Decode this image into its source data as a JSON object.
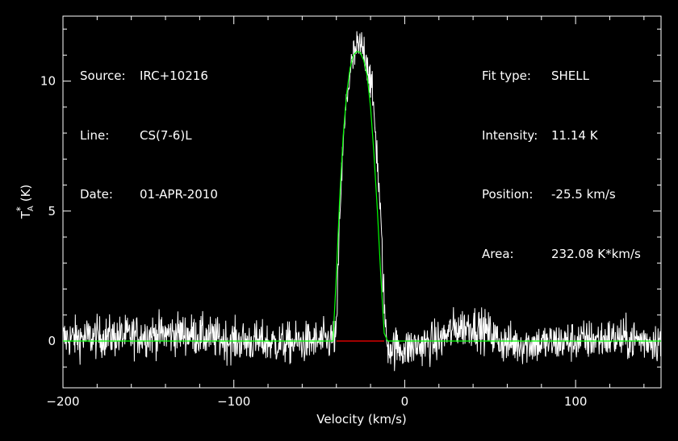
{
  "info_left": {
    "source_key": "Source:",
    "source_value": "IRC+10216",
    "line_key": "Line:",
    "line_value": "CS(7-6)L",
    "date_key": "Date:",
    "date_value": "01-APR-2010"
  },
  "info_right": {
    "fit_type_key": "Fit type:",
    "fit_type_value": "SHELL",
    "intensity_key": "Intensity:",
    "intensity_value": "11.14 K",
    "position_key": "Position:",
    "position_value": "-25.5 km/s",
    "area_key": "Area:",
    "area_value": "232.08 K*km/s"
  },
  "chart_data": {
    "type": "line",
    "title": "",
    "xlabel": "Velocity (km/s)",
    "ylabel_main": "T",
    "ylabel_sub": "A",
    "ylabel_sup": "*",
    "ylabel_unit": "(K)",
    "xlim": [
      -200,
      150
    ],
    "ylim": [
      -1.8,
      12.5
    ],
    "x_ticks": [
      -200,
      -100,
      0,
      100
    ],
    "x_tick_labels": [
      "-200",
      "-100",
      "0",
      "100"
    ],
    "y_ticks": [
      0,
      5,
      10
    ],
    "y_tick_labels": [
      "0",
      "5",
      "10"
    ],
    "grid": false,
    "legend": "none",
    "colors": {
      "background": "#000000",
      "spectrum": "#ffffff",
      "fit": "#00ff00",
      "baseline": "#ff0000",
      "axes": "#ffffff"
    },
    "series": [
      {
        "role": "spectrum",
        "noise_rms": 0.4,
        "x": [
          -200,
          -160,
          -130,
          -100,
          -70,
          -45,
          -40,
          -39,
          -38,
          -36,
          -34,
          -32,
          -30,
          -28,
          -26,
          -24,
          -22,
          -20,
          -18,
          -16,
          -14,
          -12,
          -11,
          -10,
          0,
          20,
          30,
          40,
          50,
          55,
          60,
          80,
          100,
          120,
          150
        ],
        "y": [
          0.1,
          0.2,
          0.3,
          0.0,
          -0.1,
          0.0,
          0.2,
          2.5,
          5.0,
          7.5,
          9.3,
          10.3,
          10.9,
          11.2,
          11.3,
          11.2,
          10.8,
          10.0,
          8.8,
          7.0,
          4.5,
          1.5,
          0.2,
          -0.2,
          -0.3,
          0.0,
          0.5,
          0.6,
          0.3,
          0.0,
          -0.1,
          -0.1,
          0.0,
          0.1,
          0.0
        ]
      },
      {
        "role": "fit",
        "x": [
          -200,
          -42,
          -40,
          -38,
          -36,
          -34,
          -32,
          -30,
          -28,
          -26,
          -24,
          -22,
          -20,
          -18,
          -16,
          -14,
          -12,
          -10,
          150
        ],
        "y": [
          0,
          0,
          2.5,
          5.6,
          7.9,
          9.5,
          10.5,
          11.0,
          11.14,
          11.1,
          10.8,
          10.2,
          9.0,
          7.2,
          5.0,
          2.5,
          0.3,
          0,
          0
        ]
      },
      {
        "role": "baseline",
        "x": [
          -40,
          -12
        ],
        "y": [
          0,
          0
        ]
      }
    ]
  }
}
